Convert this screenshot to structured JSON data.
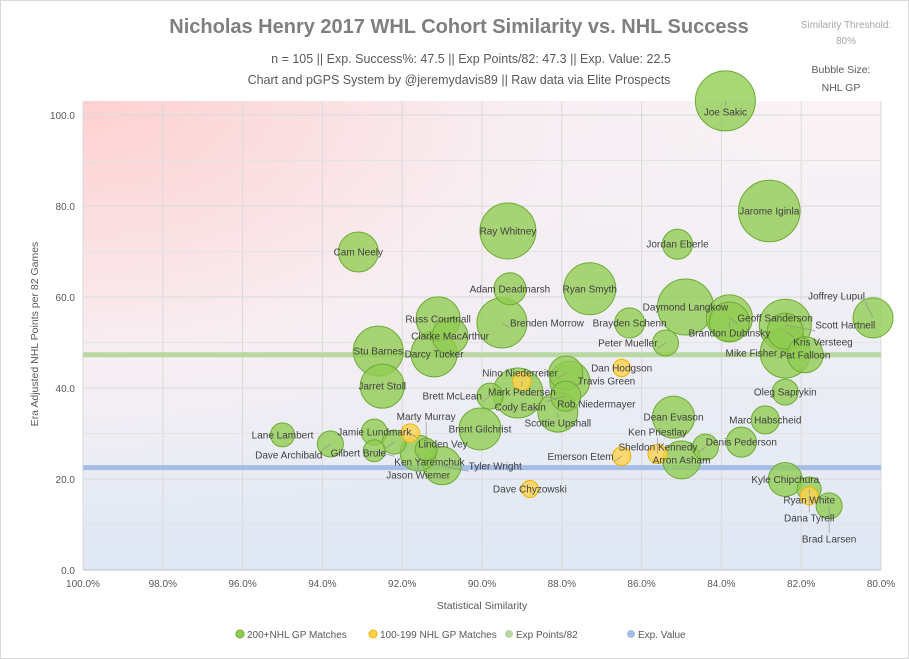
{
  "chart_data": {
    "type": "scatter",
    "title": "Nicholas Henry 2017 WHL Cohort Similarity vs. NHL Success",
    "subtitle1": "n = 105  || Exp. Success%: 47.5  || Exp Points/82: 47.3  || Exp. Value: 22.5",
    "subtitle2": "Chart and pGPS System by @jeremydavis89  || Raw data via Elite Prospects",
    "threshold_label": "Similarity Threshold:",
    "threshold_value": "80%",
    "bubble_label": "Bubble Size:",
    "bubble_value": "NHL GP",
    "xlabel": "Statistical Similarity",
    "ylabel": "Era Adjusted NHL Points per 82 Games",
    "xlim": [
      100,
      80
    ],
    "ylim": [
      0,
      103
    ],
    "x_ticks": [
      "100.0%",
      "98.0%",
      "96.0%",
      "94.0%",
      "92.0%",
      "90.0%",
      "88.0%",
      "86.0%",
      "84.0%",
      "82.0%",
      "80.0%"
    ],
    "y_ticks": [
      "0.0",
      "20.0",
      "40.0",
      "60.0",
      "80.0",
      "100.0"
    ],
    "exp_points_82": 47.3,
    "exp_value": 22.5,
    "colors": {
      "green": "#8fcc4f",
      "yellow": "#ffd34d",
      "exp_points": "#b9d7a1",
      "exp_value": "#a6bde6",
      "title": "#7f7f7f"
    },
    "legend": [
      "200+NHL GP Matches",
      "100-199 NHL GP Matches",
      "Exp Points/82",
      "Exp. Value"
    ],
    "points": [
      {
        "name": "Joe Sakic",
        "sim": 83.9,
        "pts": 103.1,
        "gp": 1378,
        "group": "200+"
      },
      {
        "name": "Jarome Iginla",
        "sim": 82.8,
        "pts": 78.9,
        "gp": 1450,
        "group": "200+"
      },
      {
        "name": "Ray Whitney",
        "sim": 89.35,
        "pts": 74.5,
        "gp": 1200,
        "group": "200+"
      },
      {
        "name": "Cam Neely",
        "sim": 93.1,
        "pts": 69.9,
        "gp": 612,
        "group": "200+"
      },
      {
        "name": "Jordan Eberle",
        "sim": 85.1,
        "pts": 71.6,
        "gp": 345,
        "group": "200+"
      },
      {
        "name": "Adam Deadmarsh",
        "sim": 89.3,
        "pts": 61.8,
        "gp": 392,
        "group": "200+"
      },
      {
        "name": "Ryan Smyth",
        "sim": 87.3,
        "pts": 61.8,
        "gp": 1035,
        "group": "200+"
      },
      {
        "name": "Russ Courtnall",
        "sim": 91.1,
        "pts": 55.2,
        "gp": 741,
        "group": "200+"
      },
      {
        "name": "Brenden Morrow",
        "sim": 89.5,
        "pts": 54.3,
        "gp": 957,
        "group": "200+"
      },
      {
        "name": "Clarke MacArthur",
        "sim": 90.8,
        "pts": 51.4,
        "gp": 496,
        "group": "200+"
      },
      {
        "name": "Brayden Schenn",
        "sim": 86.3,
        "pts": 54.3,
        "gp": 345,
        "group": "200+"
      },
      {
        "name": "Daymond Langkow",
        "sim": 84.9,
        "pts": 57.8,
        "gp": 1200,
        "group": "200+"
      },
      {
        "name": "Geoff Sanderson",
        "sim": 83.8,
        "pts": 55.4,
        "gp": 810,
        "group": "200+"
      },
      {
        "name": "Brandon Dubinsky",
        "sim": 83.8,
        "pts": 54.5,
        "gp": 612,
        "group": "200+"
      },
      {
        "name": "Scott Hartnell",
        "sim": 82.4,
        "pts": 53.8,
        "gp": 1035,
        "group": "200+"
      },
      {
        "name": "Kris Versteeg",
        "sim": 82.4,
        "pts": 52.5,
        "gp": 496,
        "group": "200+"
      },
      {
        "name": "Joffrey Lupul",
        "sim": 80.2,
        "pts": 55.4,
        "gp": 612,
        "group": "200+"
      },
      {
        "name": "Peter Mueller",
        "sim": 85.4,
        "pts": 49.9,
        "gp": 259,
        "group": "200+"
      },
      {
        "name": "Stu Barnes",
        "sim": 92.6,
        "pts": 48.1,
        "gp": 957,
        "group": "200+"
      },
      {
        "name": "Darcy Tucker",
        "sim": 91.2,
        "pts": 47.5,
        "gp": 810,
        "group": "200+"
      },
      {
        "name": "Mike Fisher",
        "sim": 82.4,
        "pts": 47.7,
        "gp": 957,
        "group": "200+"
      },
      {
        "name": "Pat Falloon",
        "sim": 81.9,
        "pts": 47.3,
        "gp": 496,
        "group": "200+"
      },
      {
        "name": "Jarret Stoll",
        "sim": 92.5,
        "pts": 40.4,
        "gp": 741,
        "group": "200+"
      },
      {
        "name": "Dan Hodgson",
        "sim": 86.5,
        "pts": 44.4,
        "gp": 115,
        "group": "100-199"
      },
      {
        "name": "Nino Niederreiter",
        "sim": 87.9,
        "pts": 43.3,
        "gp": 442,
        "group": "200+"
      },
      {
        "name": "Travis Green",
        "sim": 87.8,
        "pts": 41.5,
        "gp": 612,
        "group": "200+"
      },
      {
        "name": "Mark Pedersen",
        "sim": 89.0,
        "pts": 41.5,
        "gp": 130,
        "group": "100-199"
      },
      {
        "name": "Brett McLean",
        "sim": 89.8,
        "pts": 38.2,
        "gp": 259,
        "group": "200+"
      },
      {
        "name": "Rob Niedermayer",
        "sim": 89.1,
        "pts": 38.9,
        "gp": 957,
        "group": "200+"
      },
      {
        "name": "Cody Eakin",
        "sim": 87.9,
        "pts": 38.2,
        "gp": 345,
        "group": "200+"
      },
      {
        "name": "Scottie Upshall",
        "sim": 88.1,
        "pts": 34.7,
        "gp": 612,
        "group": "200+"
      },
      {
        "name": "Oleg Saprykin",
        "sim": 82.4,
        "pts": 39.1,
        "gp": 259,
        "group": "200+"
      },
      {
        "name": "Marc Habscheid",
        "sim": 82.9,
        "pts": 33.0,
        "gp": 300,
        "group": "200+"
      },
      {
        "name": "Dean Evason",
        "sim": 85.2,
        "pts": 33.6,
        "gp": 675,
        "group": "200+"
      },
      {
        "name": "Brent Gilchrist",
        "sim": 90.05,
        "pts": 31.0,
        "gp": 675,
        "group": "200+"
      },
      {
        "name": "Lane Lambert",
        "sim": 95.0,
        "pts": 29.7,
        "gp": 220,
        "group": "200+"
      },
      {
        "name": "Jamie Lundmark",
        "sim": 92.7,
        "pts": 30.3,
        "gp": 259,
        "group": "200+"
      },
      {
        "name": "Linden Vey",
        "sim": 91.8,
        "pts": 30.1,
        "gp": 130,
        "group": "100-199"
      },
      {
        "name": "Gilbert Brule",
        "sim": 92.2,
        "pts": 28.1,
        "gp": 220,
        "group": "200+"
      },
      {
        "name": "Dave Archibald",
        "sim": 93.8,
        "pts": 27.7,
        "gp": 259,
        "group": "200+"
      },
      {
        "name": "Ken Yaremchuk",
        "sim": 92.7,
        "pts": 26.2,
        "gp": 185,
        "group": "200+"
      },
      {
        "name": "Jason Wiemer",
        "sim": 91.6,
        "pts": 25.7,
        "gp": 496,
        "group": "200+"
      },
      {
        "name": "Marty Murray",
        "sim": 91.4,
        "pts": 26.5,
        "gp": 185,
        "group": "200+"
      },
      {
        "name": "Tyler Wright",
        "sim": 91.0,
        "pts": 22.9,
        "gp": 553,
        "group": "200+"
      },
      {
        "name": "Denis Pederson",
        "sim": 83.5,
        "pts": 28.1,
        "gp": 345,
        "group": "200+"
      },
      {
        "name": "Sheldon Kennedy",
        "sim": 84.4,
        "pts": 27.0,
        "gp": 259,
        "group": "200+"
      },
      {
        "name": "Arron Asham",
        "sim": 85.0,
        "pts": 24.2,
        "gp": 553,
        "group": "200+"
      },
      {
        "name": "Emerson Etem",
        "sim": 86.5,
        "pts": 25.0,
        "gp": 130,
        "group": "100-199"
      },
      {
        "name": "Ken Priestlay",
        "sim": 85.6,
        "pts": 25.5,
        "gp": 140,
        "group": "100-199"
      },
      {
        "name": "Dave Chyzowski",
        "sim": 88.8,
        "pts": 17.8,
        "gp": 110,
        "group": "100-199"
      },
      {
        "name": "Kyle Chipchura",
        "sim": 82.4,
        "pts": 19.9,
        "gp": 442,
        "group": "200+"
      },
      {
        "name": "Ryan White",
        "sim": 81.8,
        "pts": 17.8,
        "gp": 220,
        "group": "200+"
      },
      {
        "name": "Dana Tyrell",
        "sim": 81.8,
        "pts": 16.3,
        "gp": 124,
        "group": "100-199"
      },
      {
        "name": "Brad Larsen",
        "sim": 81.3,
        "pts": 14.1,
        "gp": 259,
        "group": "200+"
      }
    ]
  }
}
